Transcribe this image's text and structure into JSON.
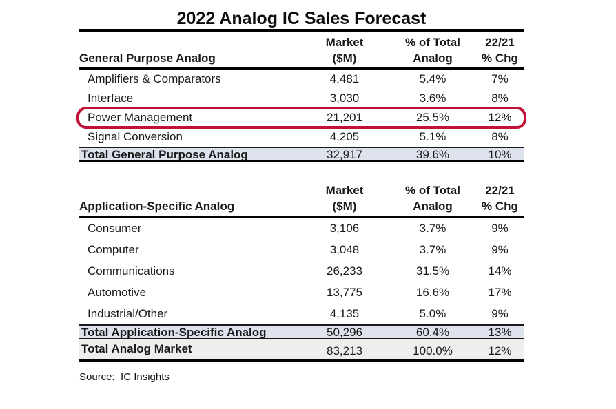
{
  "title": "2022 Analog IC Sales Forecast",
  "columns": {
    "market_line1": "Market",
    "market_line2": "($M)",
    "pct_line1": "% of Total",
    "pct_line2": "Analog",
    "chg_line1": "22/21",
    "chg_line2": "% Chg"
  },
  "t1": {
    "section_label": "General Purpose Analog",
    "rows": [
      {
        "label": "Amplifiers & Comparators",
        "market": "4,481",
        "pct": "5.4%",
        "chg": "7%"
      },
      {
        "label": "Interface",
        "market": "3,030",
        "pct": "3.6%",
        "chg": "8%"
      },
      {
        "label": "Power Management",
        "market": "21,201",
        "pct": "25.5%",
        "chg": "12%"
      },
      {
        "label": "Signal Conversion",
        "market": "4,205",
        "pct": "5.1%",
        "chg": "8%"
      }
    ],
    "total": {
      "label": "Total General Purpose Analog",
      "market": "32,917",
      "pct": "39.6%",
      "chg": "10%"
    }
  },
  "t2": {
    "section_label": "Application-Specific Analog",
    "rows": [
      {
        "label": "Consumer",
        "market": "3,106",
        "pct": "3.7%",
        "chg": "9%"
      },
      {
        "label": "Computer",
        "market": "3,048",
        "pct": "3.7%",
        "chg": "9%"
      },
      {
        "label": "Communications",
        "market": "26,233",
        "pct": "31.5%",
        "chg": "14%"
      },
      {
        "label": "Automotive",
        "market": "13,775",
        "pct": "16.6%",
        "chg": "17%"
      },
      {
        "label": "Industrial/Other",
        "market": "4,135",
        "pct": "5.0%",
        "chg": "9%"
      }
    ],
    "total": {
      "label": "Total Application-Specific Analog",
      "market": "50,296",
      "pct": "60.4%",
      "chg": "13%"
    }
  },
  "grand_total": {
    "label": "Total Analog Market",
    "market": "83,213",
    "pct": "100.0%",
    "chg": "12%"
  },
  "source": "Source:  IC Insights",
  "colors": {
    "highlight_border": "#c01236",
    "total_row_bg": "#dde2ec",
    "grand_total_bg": "#eeeeec"
  },
  "chart_data": {
    "type": "table",
    "title": "2022 Analog IC Sales Forecast",
    "columns": [
      "Category",
      "Market ($M)",
      "% of Total Analog",
      "22/21 % Chg"
    ],
    "sections": [
      {
        "name": "General Purpose Analog",
        "rows": [
          [
            "Amplifiers & Comparators",
            4481,
            5.4,
            7
          ],
          [
            "Interface",
            3030,
            3.6,
            8
          ],
          [
            "Power Management",
            21201,
            25.5,
            12
          ],
          [
            "Signal Conversion",
            4205,
            5.1,
            8
          ]
        ],
        "total": [
          "Total General Purpose Analog",
          32917,
          39.6,
          10
        ]
      },
      {
        "name": "Application-Specific Analog",
        "rows": [
          [
            "Consumer",
            3106,
            3.7,
            9
          ],
          [
            "Computer",
            3048,
            3.7,
            9
          ],
          [
            "Communications",
            26233,
            31.5,
            14
          ],
          [
            "Automotive",
            13775,
            16.6,
            17
          ],
          [
            "Industrial/Other",
            4135,
            5.0,
            9
          ]
        ],
        "total": [
          "Total Application-Specific Analog",
          50296,
          60.4,
          13
        ]
      }
    ],
    "grand_total": [
      "Total Analog Market",
      83213,
      100.0,
      12
    ],
    "source": "IC Insights",
    "annotations": [
      "Power Management row circled with red rounded box"
    ]
  }
}
